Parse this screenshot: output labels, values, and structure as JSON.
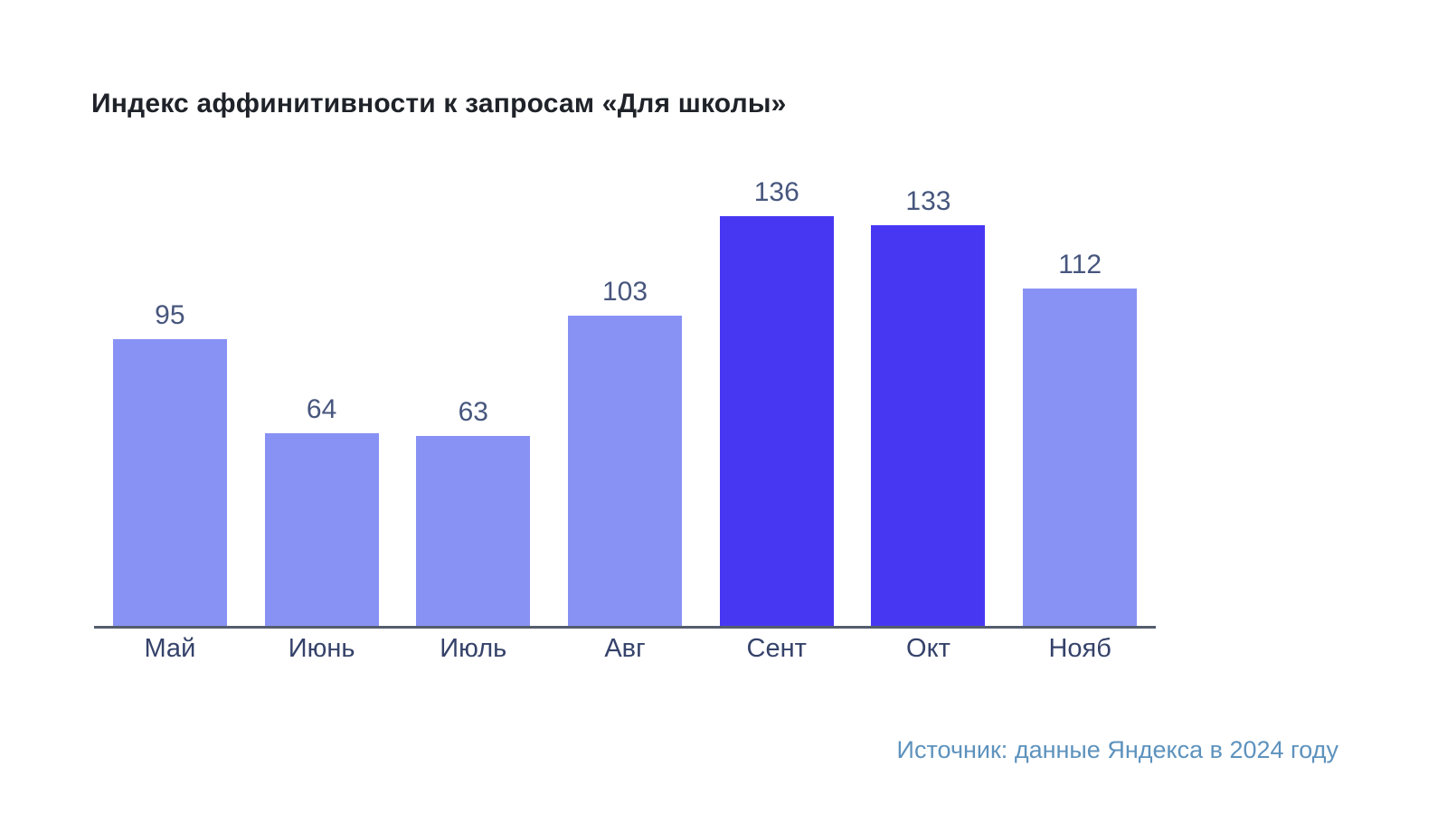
{
  "chart_data": {
    "type": "bar",
    "title": "Индекс аффинитивности к запросам «Для школы»",
    "categories": [
      "Май",
      "Июнь",
      "Июль",
      "Авг",
      "Сент",
      "Окт",
      "Нояб"
    ],
    "values": [
      95,
      64,
      63,
      103,
      136,
      133,
      112
    ],
    "highlighted_indices": [
      4,
      5
    ],
    "bar_color": "#8892f4",
    "highlight_color": "#4837f2",
    "value_label_color": "#47567d",
    "axis_label_color": "#35426a",
    "axis_line_color": "#545d6d",
    "ylim": [
      0,
      150
    ],
    "grid": false,
    "legend": false,
    "data_labels": true,
    "xlabel": "",
    "ylabel": ""
  },
  "source": {
    "text": "Источник: данные Яндекса в 2024 году",
    "color": "#5d92bd"
  }
}
